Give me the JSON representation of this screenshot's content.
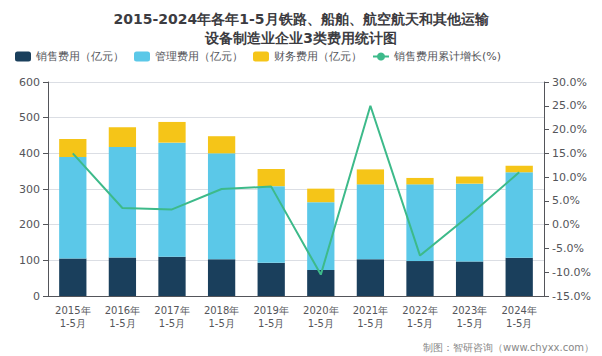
{
  "chart_data": {
    "type": "bar",
    "title": "2015-2024年各年1-5月铁路、船舶、航空航天和其他运输\n设备制造业企业3类费用统计图",
    "categories": [
      "2015年\n1-5月",
      "2016年\n1-5月",
      "2017年\n1-5月",
      "2018年\n1-5月",
      "2019年\n1-5月",
      "2020年\n1-5月",
      "2021年\n1-5月",
      "2022年\n1-5月",
      "2023年\n1-5月",
      "2024年\n1-5月"
    ],
    "series": [
      {
        "name": "销售费用（亿元）",
        "type": "bar",
        "color": "#1a3f5c",
        "values": [
          105,
          108,
          110,
          103,
          93,
          73,
          103,
          98,
          97,
          107
        ]
      },
      {
        "name": "管理费用（亿元）",
        "type": "bar",
        "color": "#5bc8e8",
        "values": [
          285,
          310,
          320,
          297,
          215,
          190,
          210,
          215,
          218,
          240
        ]
      },
      {
        "name": "财务费用（亿元）",
        "type": "bar",
        "color": "#f5c518",
        "values": [
          50,
          55,
          58,
          48,
          48,
          38,
          42,
          18,
          20,
          18
        ]
      },
      {
        "name": "销售费用累计增长(%)",
        "type": "line",
        "axis": "y2",
        "color": "#3dba8a",
        "values": [
          15.0,
          3.5,
          3.2,
          7.5,
          8.0,
          -10.5,
          25.0,
          -6.5,
          2.0,
          11.0
        ]
      }
    ],
    "ylim": [
      0,
      600
    ],
    "yticks": [
      0,
      100,
      200,
      300,
      400,
      500,
      600
    ],
    "y2lim": [
      -15,
      30
    ],
    "y2ticks": [
      {
        "value": -15,
        "label": "-15.0%"
      },
      {
        "value": -10,
        "label": "-10.0%"
      },
      {
        "value": -5,
        "label": "-5.0%"
      },
      {
        "value": 0,
        "label": "0.0%"
      },
      {
        "value": 5,
        "label": "5.0%"
      },
      {
        "value": 10,
        "label": "10.0%"
      },
      {
        "value": 15,
        "label": "15.0%"
      },
      {
        "value": 20,
        "label": "20.0%"
      },
      {
        "value": 25,
        "label": "25.0%"
      },
      {
        "value": 30,
        "label": "30.0%"
      }
    ],
    "stacked": true,
    "grid": true,
    "legend": "upper left",
    "annotations": [
      "制图：智研咨询（www.chyxx.com）"
    ]
  }
}
